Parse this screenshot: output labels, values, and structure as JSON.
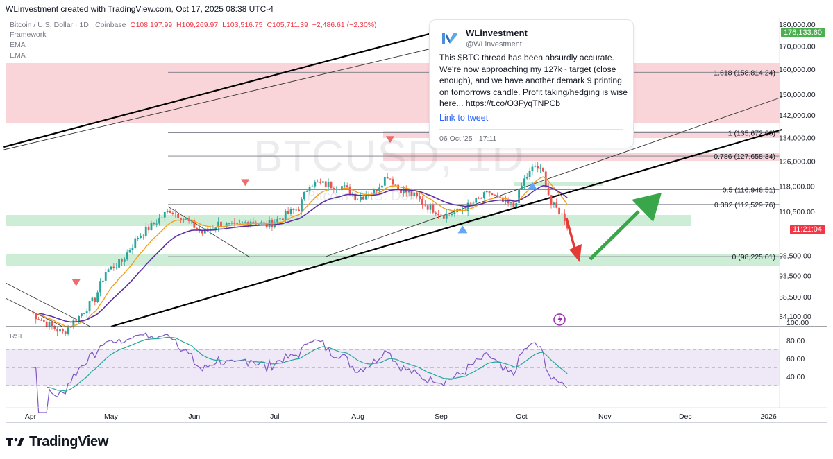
{
  "header": {
    "text": "WLinvestment created with TradingView.com, Oct 17, 2025 08:38 UTC-4"
  },
  "symbol_line": {
    "name": "Bitcoin / U.S. Dollar · 1D · Coinbase",
    "open": "O108,197.99",
    "high": "H109,269.97",
    "low": "L103,516.75",
    "close": "C105,711.39",
    "change": "−2,486.61 (−2.30%)"
  },
  "indicators": [
    "Framework",
    "EMA",
    "EMA"
  ],
  "watermark": {
    "symbol": "BTCUSD, 1D",
    "description": "Bitcoin / U.S. Dollar"
  },
  "price_badges": {
    "top": "176,133.60",
    "countdown": "11:21:04"
  },
  "tweet": {
    "name": "WLinvestment",
    "handle": "@WLinvestment",
    "text": "This $BTC thread has been absurdly accurate. We're now approaching my 127k~ target (close enough), and we have another demark 9 printing on tomorrows candle. Profit taking/hedging is wise here... https://t.co/O3FyqTNPCb",
    "link": "Link to tweet",
    "date": "06 Oct '25 · 17:11"
  },
  "rsi_label": "RSI",
  "footer": {
    "brand": "TradingView"
  },
  "colors": {
    "up": "#26a69a",
    "down": "#ef5350",
    "ema_fast": "#f59d19",
    "ema_slow": "#5b2ea6",
    "rsi": "#7e57c2",
    "rsi_ma": "#26a69a",
    "red_zone": "#f7c5cb",
    "green_zone": "#c8ebd3",
    "accent": "#2962ff"
  },
  "chart_data": {
    "type": "candlestick",
    "price_axis": {
      "ticks": [
        "180,000.00",
        "170,000.00",
        "160,000.00",
        "150,000.00",
        "142,000.00",
        "134,000.00",
        "126,000.00",
        "118,000.00",
        "110,500.00",
        "98,500.00",
        "93,500.00",
        "88,500.00",
        "84,100.00"
      ],
      "values": [
        180000,
        170000,
        160000,
        150000,
        142000,
        134000,
        126000,
        118000,
        110500,
        98500,
        93500,
        88500,
        84100
      ]
    },
    "time_axis": {
      "labels": [
        "Apr",
        "May",
        "Jun",
        "Jul",
        "Aug",
        "Sep",
        "Oct",
        "Nov",
        "Dec",
        "2026"
      ],
      "days": [
        0,
        30,
        61,
        91,
        122,
        153,
        183,
        214,
        244,
        275
      ]
    },
    "fib_levels": [
      {
        "label": "1.618 (158,814.24)",
        "value": 158814.24
      },
      {
        "label": "1 (135,672.00)",
        "value": 135672.0
      },
      {
        "label": "0.786 (127,658.34)",
        "value": 127658.34
      },
      {
        "label": "0.5 (116,948.51)",
        "value": 116948.51
      },
      {
        "label": "0.382 (112,529.76)",
        "value": 112529.76
      },
      {
        "label": "0 (98,225.01)",
        "value": 98225.01
      }
    ],
    "close_anchors": [
      {
        "day": 0,
        "close": 85000
      },
      {
        "day": 6,
        "close": 82500
      },
      {
        "day": 12,
        "close": 80500
      },
      {
        "day": 18,
        "close": 84000
      },
      {
        "day": 24,
        "close": 88000
      },
      {
        "day": 28,
        "close": 94500
      },
      {
        "day": 34,
        "close": 97000
      },
      {
        "day": 40,
        "close": 103500
      },
      {
        "day": 46,
        "close": 107000
      },
      {
        "day": 52,
        "close": 111000
      },
      {
        "day": 58,
        "close": 108000
      },
      {
        "day": 64,
        "close": 104500
      },
      {
        "day": 70,
        "close": 107000
      },
      {
        "day": 76,
        "close": 106000
      },
      {
        "day": 82,
        "close": 108000
      },
      {
        "day": 88,
        "close": 106500
      },
      {
        "day": 94,
        "close": 109000
      },
      {
        "day": 100,
        "close": 111500
      },
      {
        "day": 104,
        "close": 119000
      },
      {
        "day": 110,
        "close": 118500
      },
      {
        "day": 116,
        "close": 118000
      },
      {
        "day": 122,
        "close": 114500
      },
      {
        "day": 128,
        "close": 116500
      },
      {
        "day": 133,
        "close": 121500
      },
      {
        "day": 137,
        "close": 117500
      },
      {
        "day": 143,
        "close": 115000
      },
      {
        "day": 148,
        "close": 112000
      },
      {
        "day": 154,
        "close": 109500
      },
      {
        "day": 160,
        "close": 110500
      },
      {
        "day": 166,
        "close": 113500
      },
      {
        "day": 171,
        "close": 116000
      },
      {
        "day": 176,
        "close": 113000
      },
      {
        "day": 180,
        "close": 112000
      },
      {
        "day": 184,
        "close": 120000
      },
      {
        "day": 188,
        "close": 124500
      },
      {
        "day": 191,
        "close": 122000
      },
      {
        "day": 194,
        "close": 112500
      },
      {
        "day": 197,
        "close": 110500
      },
      {
        "day": 199,
        "close": 108500
      },
      {
        "day": 200,
        "close": 105711.39
      }
    ],
    "rsi_axis": {
      "ticks": [
        "100.00",
        "80.00",
        "60.00",
        "40.00"
      ],
      "values": [
        100,
        80,
        60,
        40
      ],
      "band": [
        30,
        70
      ]
    },
    "markers": [
      {
        "type": "sell",
        "day": 17
      },
      {
        "type": "sell",
        "day": 80
      },
      {
        "type": "sell",
        "day": 134
      },
      {
        "type": "buy",
        "day": 161
      },
      {
        "type": "buy",
        "day": 187
      }
    ]
  }
}
